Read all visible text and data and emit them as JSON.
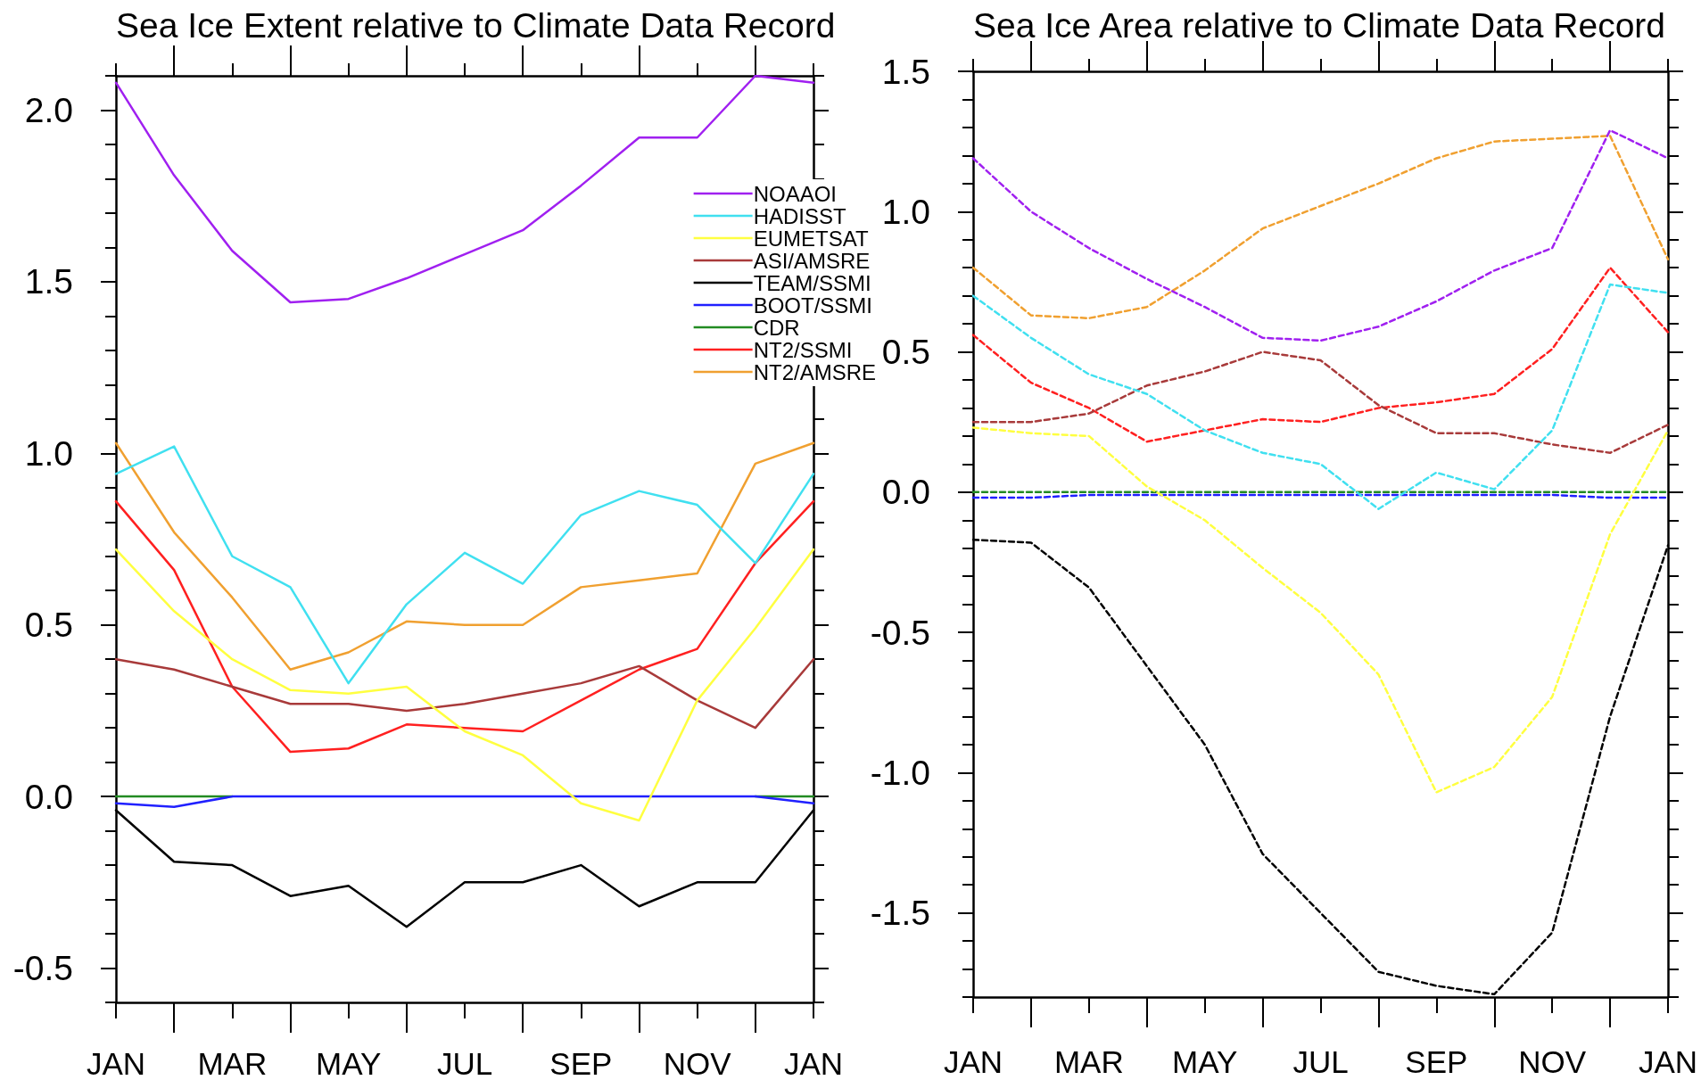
{
  "chart_data": [
    {
      "type": "line",
      "title": "Sea Ice Extent relative to Climate Data Record",
      "categories": [
        "JAN",
        null,
        "MAR",
        null,
        "MAY",
        null,
        "JUL",
        null,
        "SEP",
        null,
        "NOV",
        null,
        "JAN"
      ],
      "ylim": [
        -0.6,
        2.1
      ],
      "yticks": [
        {
          "value": -0.6,
          "label": null
        },
        -0.5,
        {
          "value": -0.4,
          "label": null
        },
        {
          "value": -0.3,
          "label": null
        },
        {
          "value": -0.2,
          "label": null
        },
        {
          "value": -0.1,
          "label": null
        },
        {
          "value": 0,
          "label": "0.0"
        },
        {
          "value": 0.1,
          "label": null
        },
        {
          "value": 0.2,
          "label": null
        },
        {
          "value": 0.3,
          "label": null
        },
        {
          "value": 0.4,
          "label": null
        },
        0.5,
        {
          "value": 0.6,
          "label": null
        },
        {
          "value": 0.7,
          "label": null
        },
        {
          "value": 0.8,
          "label": null
        },
        {
          "value": 0.9,
          "label": null
        },
        {
          "value": 1,
          "label": "1.0"
        },
        {
          "value": 1.1,
          "label": null
        },
        {
          "value": 1.2,
          "label": null
        },
        {
          "value": 1.3,
          "label": null
        },
        {
          "value": 1.4,
          "label": null
        },
        1.5,
        {
          "value": 1.6,
          "label": null
        },
        {
          "value": 1.7,
          "label": null
        },
        {
          "value": 1.8,
          "label": null
        },
        {
          "value": 1.9,
          "label": null
        },
        {
          "value": 2,
          "label": "2.0"
        },
        {
          "value": 2.1,
          "label": null
        }
      ],
      "legend": "top right",
      "marker": "none",
      "line_style": "solid",
      "series": [
        {
          "name": "NOAAOI",
          "color": "#a020f0",
          "values": [
            2.08,
            1.81,
            1.59,
            1.44,
            1.45,
            1.51,
            1.58,
            1.65,
            1.78,
            1.92,
            1.92,
            2.1,
            2.08
          ]
        },
        {
          "name": "HADISST",
          "color": "#40e0f0",
          "values": [
            0.94,
            1.02,
            0.7,
            0.61,
            0.33,
            0.56,
            0.71,
            0.62,
            0.82,
            0.89,
            0.85,
            0.68,
            0.94
          ]
        },
        {
          "name": "EUMETSAT",
          "color": "#ffff40",
          "values": [
            0.72,
            0.54,
            0.4,
            0.31,
            0.3,
            0.32,
            0.19,
            0.12,
            -0.02,
            -0.07,
            0.28,
            0.49,
            0.72
          ]
        },
        {
          "name": "ASI/AMSRE",
          "color": "#a83a3a",
          "values": [
            0.4,
            0.37,
            0.32,
            0.27,
            0.27,
            0.25,
            0.27,
            0.3,
            0.33,
            0.38,
            0.28,
            0.2,
            0.4
          ]
        },
        {
          "name": "TEAM/SSMI",
          "color": "#000000",
          "values": [
            -0.04,
            -0.19,
            -0.2,
            -0.29,
            -0.26,
            -0.38,
            -0.25,
            -0.25,
            -0.2,
            -0.32,
            -0.25,
            -0.25,
            -0.04
          ]
        },
        {
          "name": "BOOT/SSMI",
          "color": "#2020ff",
          "values": [
            -0.02,
            -0.03,
            0,
            0,
            0,
            0,
            0,
            0,
            0,
            0,
            0,
            0,
            -0.02
          ]
        },
        {
          "name": "CDR",
          "color": "#228b22",
          "values": [
            0,
            0,
            0,
            null,
            null,
            null,
            null,
            null,
            null,
            null,
            null,
            0,
            0
          ]
        },
        {
          "name": "NT2/SSMI",
          "color": "#ff2020",
          "values": [
            0.86,
            0.66,
            0.32,
            0.13,
            0.14,
            0.21,
            0.2,
            0.19,
            0.28,
            0.37,
            0.43,
            0.68,
            0.86
          ]
        },
        {
          "name": "NT2/AMSRE",
          "color": "#f0a030",
          "values": [
            1.03,
            0.77,
            0.58,
            0.37,
            0.42,
            0.51,
            0.5,
            0.5,
            0.61,
            0.63,
            0.65,
            0.97,
            1.03
          ]
        }
      ]
    },
    {
      "type": "line",
      "title": "Sea Ice Area relative to Climate Data Record",
      "categories": [
        "JAN",
        null,
        "MAR",
        null,
        "MAY",
        null,
        "JUL",
        null,
        "SEP",
        null,
        "NOV",
        null,
        "JAN"
      ],
      "ylim": [
        -1.8,
        1.5
      ],
      "yticks": [
        {
          "value": -1.8,
          "label": null
        },
        {
          "value": -1.7,
          "label": null
        },
        {
          "value": -1.6,
          "label": null
        },
        -1.5,
        {
          "value": -1.4,
          "label": null
        },
        {
          "value": -1.3,
          "label": null
        },
        {
          "value": -1.2,
          "label": null
        },
        {
          "value": -1.1,
          "label": null
        },
        {
          "value": -1,
          "label": "-1.0"
        },
        {
          "value": -0.9,
          "label": null
        },
        {
          "value": -0.8,
          "label": null
        },
        {
          "value": -0.7,
          "label": null
        },
        {
          "value": -0.6,
          "label": null
        },
        -0.5,
        {
          "value": -0.4,
          "label": null
        },
        {
          "value": -0.3,
          "label": null
        },
        {
          "value": -0.2,
          "label": null
        },
        {
          "value": -0.1,
          "label": null
        },
        {
          "value": 0,
          "label": "0.0"
        },
        {
          "value": 0.1,
          "label": null
        },
        {
          "value": 0.2,
          "label": null
        },
        {
          "value": 0.3,
          "label": null
        },
        {
          "value": 0.4,
          "label": null
        },
        0.5,
        {
          "value": 0.6,
          "label": null
        },
        {
          "value": 0.7,
          "label": null
        },
        {
          "value": 0.8,
          "label": null
        },
        {
          "value": 0.9,
          "label": null
        },
        {
          "value": 1,
          "label": "1.0"
        },
        {
          "value": 1.1,
          "label": null
        },
        {
          "value": 1.2,
          "label": null
        },
        {
          "value": 1.3,
          "label": null
        },
        {
          "value": 1.4,
          "label": null
        },
        1.5
      ],
      "marker": "none",
      "line_style": "dashed",
      "series": [
        {
          "color": "#a020f0",
          "values": [
            1.19,
            1.0,
            0.87,
            0.76,
            0.66,
            0.55,
            0.54,
            0.59,
            0.68,
            0.79,
            0.87,
            1.29,
            1.19
          ]
        },
        {
          "color": "#40e0f0",
          "values": [
            0.7,
            0.55,
            0.42,
            0.35,
            0.22,
            0.14,
            0.1,
            -0.06,
            0.07,
            0.01,
            0.22,
            0.74,
            0.71
          ]
        },
        {
          "color": "#ffff40",
          "values": [
            0.23,
            0.21,
            0.2,
            0.02,
            -0.1,
            -0.27,
            -0.43,
            -0.65,
            -1.07,
            -0.98,
            -0.73,
            -0.15,
            0.22
          ]
        },
        {
          "color": "#a83a3a",
          "values": [
            0.25,
            0.25,
            0.28,
            0.38,
            0.43,
            0.5,
            0.47,
            0.31,
            0.21,
            0.21,
            0.17,
            0.14,
            0.24
          ]
        },
        {
          "color": "#000000",
          "values": [
            -0.17,
            -0.18,
            -0.34,
            -0.62,
            -0.9,
            -1.29,
            -1.5,
            -1.71,
            -1.76,
            -1.79,
            -1.57,
            -0.8,
            -0.19
          ]
        },
        {
          "color": "#2020ff",
          "values": [
            -0.02,
            -0.02,
            -0.01,
            -0.01,
            -0.01,
            -0.01,
            -0.01,
            -0.01,
            -0.01,
            -0.01,
            -0.01,
            -0.02,
            -0.02
          ]
        },
        {
          "color": "#228b22",
          "values": [
            0,
            0,
            0,
            0,
            0,
            0,
            0,
            0,
            0,
            0,
            0,
            0,
            0
          ]
        },
        {
          "color": "#ff2020",
          "values": [
            0.56,
            0.39,
            0.3,
            0.18,
            0.22,
            0.26,
            0.25,
            0.3,
            0.32,
            0.35,
            0.51,
            0.8,
            0.57
          ]
        },
        {
          "color": "#f0a030",
          "values": [
            0.8,
            0.63,
            0.62,
            0.66,
            0.79,
            0.94,
            1.02,
            1.1,
            1.19,
            1.25,
            1.26,
            1.27,
            0.83
          ]
        }
      ]
    }
  ]
}
